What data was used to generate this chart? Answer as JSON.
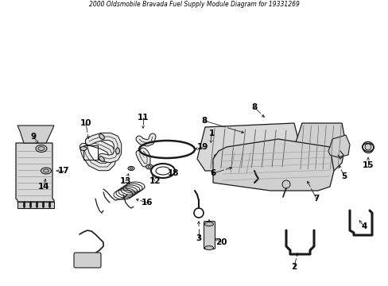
{
  "title": "2000 Oldsmobile Bravada Fuel Supply Module Diagram for 19331269",
  "background_color": "#ffffff",
  "line_color": "#1a1a1a",
  "fig_width": 4.89,
  "fig_height": 3.6,
  "dpi": 100
}
